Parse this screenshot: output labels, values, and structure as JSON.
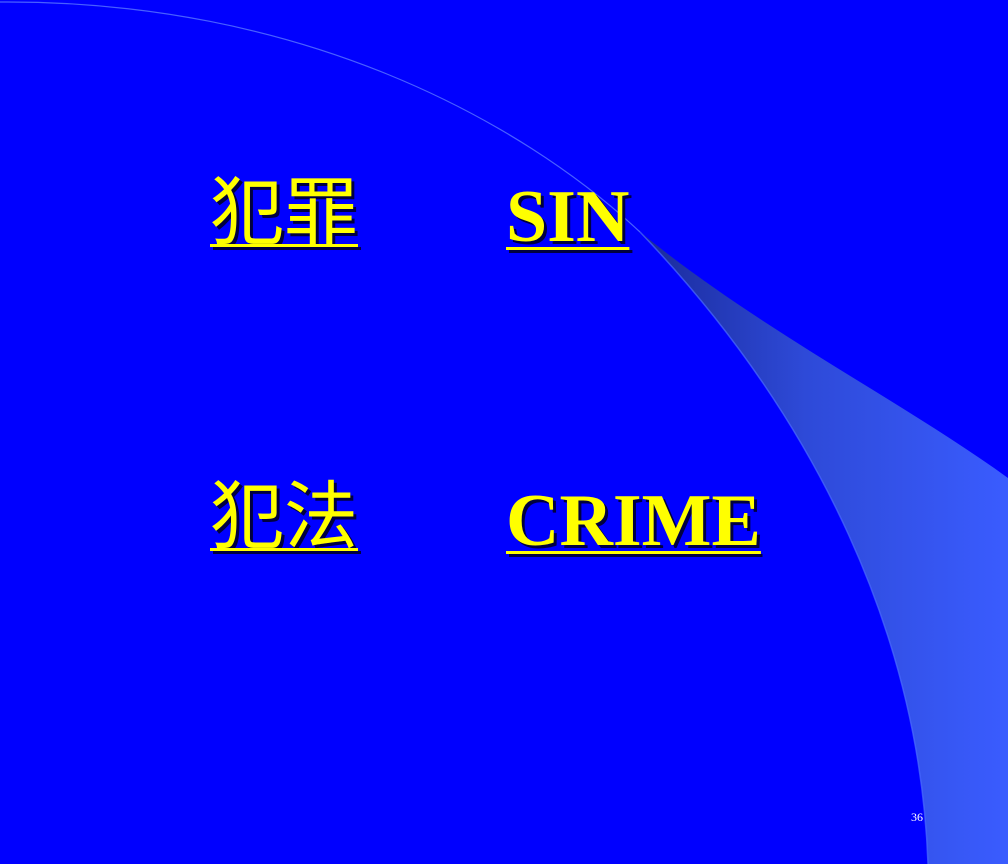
{
  "slide": {
    "rows": [
      {
        "chinese": "犯罪",
        "english": "SIN"
      },
      {
        "chinese": "犯法",
        "english": "CRIME"
      }
    ],
    "page_number": "36"
  },
  "colors": {
    "background": "#0000FF",
    "text": "#FFFF00",
    "swoosh_light": "#3A5CFF",
    "swoosh_dark": "#1A2A9A"
  }
}
